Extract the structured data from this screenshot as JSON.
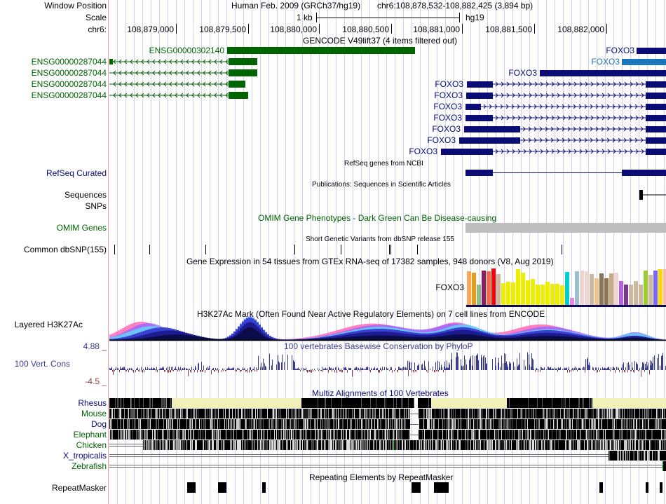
{
  "header": {
    "window_position_label": "Window Position",
    "scale_label": "Scale",
    "chrom_label": "chr6:",
    "assembly": "Human Feb. 2009 (GRCh37/hg19)",
    "position": "chr6:108,878,532-108,882,425 (3,894 bp)",
    "scale_bar_label": "1 kb",
    "scale_db": "hg19",
    "ticks": [
      "108,879,000",
      "108,879,500",
      "108,880,000",
      "108,880,500",
      "108,881,000",
      "108,881,500",
      "108,882,000"
    ]
  },
  "gencode": {
    "title": "GENCODE V49lift37 (4 items filtered out)",
    "items": [
      {
        "name": "ENSG00000302140",
        "strand": "+"
      },
      {
        "name": "ENSG00000287044",
        "strand": "-"
      },
      {
        "name": "ENSG00000287044",
        "strand": "-"
      },
      {
        "name": "ENSG00000287044",
        "strand": "-"
      },
      {
        "name": "ENSG00000287044",
        "strand": "-"
      }
    ],
    "foxo3_items": [
      "FOXO3",
      "FOXO3",
      "FOXO3",
      "FOXO3",
      "FOXO3",
      "FOXO3",
      "FOXO3",
      "FOXO3",
      "FOXO3",
      "FOXO3"
    ],
    "colors": {
      "green": "#006400",
      "navy": "#0c0c78",
      "lightblue": "#1a76b8"
    }
  },
  "refseq": {
    "label": "RefSeq Curated",
    "title": "RefSeq genes from NCBI"
  },
  "publications": {
    "label_line1": "Sequences",
    "title": "Publications: Sequences in Scientific Articles"
  },
  "snps_label": "SNPs",
  "omim": {
    "label": "OMIM Genes",
    "title": "OMIM Gene Phenotypes - Dark Green Can Be Disease-causing"
  },
  "dbsnp": {
    "label": "Common dbSNP(155)",
    "title": "Short Genetic Variants from dbSNP release 155"
  },
  "gtex": {
    "title": "Gene Expression in 54 tissues from GTEx RNA-seq of 17382 samples, 948 donors (V8, Aug 2019)",
    "gene": "FOXO3",
    "bars": [
      {
        "color": "#f9a55a",
        "value": 0.92
      },
      {
        "color": "#ee9a14",
        "value": 0.88
      },
      {
        "color": "#8fbc8f",
        "value": 0.55
      },
      {
        "color": "#8b1c62",
        "value": 0.94
      },
      {
        "color": "#ee6a50",
        "value": 0.92
      },
      {
        "color": "#ff0000",
        "value": 1.0
      },
      {
        "color": "#cdb79e",
        "value": 0.84
      },
      {
        "color": "#eeee00",
        "value": 0.6
      },
      {
        "color": "#eeee00",
        "value": 0.64
      },
      {
        "color": "#eeee00",
        "value": 0.62
      },
      {
        "color": "#eeee00",
        "value": 0.98
      },
      {
        "color": "#eeee00",
        "value": 0.89
      },
      {
        "color": "#eeee00",
        "value": 0.67
      },
      {
        "color": "#eeee00",
        "value": 0.72
      },
      {
        "color": "#eeee00",
        "value": 0.55
      },
      {
        "color": "#eeee00",
        "value": 0.55
      },
      {
        "color": "#eeee00",
        "value": 0.63
      },
      {
        "color": "#eeee00",
        "value": 0.57
      },
      {
        "color": "#eeee00",
        "value": 0.58
      },
      {
        "color": "#eeee00",
        "value": 0.53
      },
      {
        "color": "#00cdcd",
        "value": 0.91
      },
      {
        "color": "#ee82ee",
        "value": 0.2
      },
      {
        "color": "#9ac0cd",
        "value": 0.93
      },
      {
        "color": "#eed5d2",
        "value": 0.95
      },
      {
        "color": "#eed5d2",
        "value": 0.92
      },
      {
        "color": "#cdb79e",
        "value": 0.84
      },
      {
        "color": "#eec591",
        "value": 0.74
      },
      {
        "color": "#8b7355",
        "value": 0.86
      },
      {
        "color": "#8b7355",
        "value": 0.74
      },
      {
        "color": "#cdaa7d",
        "value": 0.86
      },
      {
        "color": "#eed5d2",
        "value": 0.89
      },
      {
        "color": "#b460e0",
        "value": 0.65
      },
      {
        "color": "#7a378b",
        "value": 0.56
      },
      {
        "color": "#cdb79e",
        "value": 0.56
      },
      {
        "color": "#cdb79e",
        "value": 0.65
      },
      {
        "color": "#cdb79e",
        "value": 0.56
      },
      {
        "color": "#9acd32",
        "value": 0.95
      },
      {
        "color": "#cdb79e",
        "value": 0.82
      },
      {
        "color": "#7b68ee",
        "value": 0.94
      },
      {
        "color": "#ffd700",
        "value": 0.99
      },
      {
        "color": "#ffb6c1",
        "value": 0.98
      }
    ]
  },
  "h3k27ac": {
    "label": "Layered H3K27Ac",
    "title": "H3K27Ac Mark (Often Found Near Active Regulatory Elements) on 7 cell lines from ENCODE"
  },
  "conservation": {
    "label": "100 Vert. Cons",
    "max_label": "4.88 _",
    "min_label": "-4.5 _",
    "title": "100 vertebrates Basewise Conservation by PhyloP",
    "colors": {
      "positive": "#3c3c8c",
      "negative": "#8c3c3c"
    }
  },
  "multiz": {
    "title": "Multiz Alignments of 100 Vertebrates",
    "species": [
      {
        "name": "Rhesus",
        "color": "#0c0c78"
      },
      {
        "name": "Mouse",
        "color": "#006400"
      },
      {
        "name": "Dog",
        "color": "#0c0c78"
      },
      {
        "name": "Elephant",
        "color": "#006400"
      },
      {
        "name": "Chicken",
        "color": "#006400"
      },
      {
        "name": "X_tropicalis",
        "color": "#0c0c78"
      },
      {
        "name": "Zebrafish",
        "color": "#006400"
      }
    ]
  },
  "repeatmasker": {
    "label": "RepeatMasker",
    "title": "Repeating Elements by RepeatMasker"
  }
}
